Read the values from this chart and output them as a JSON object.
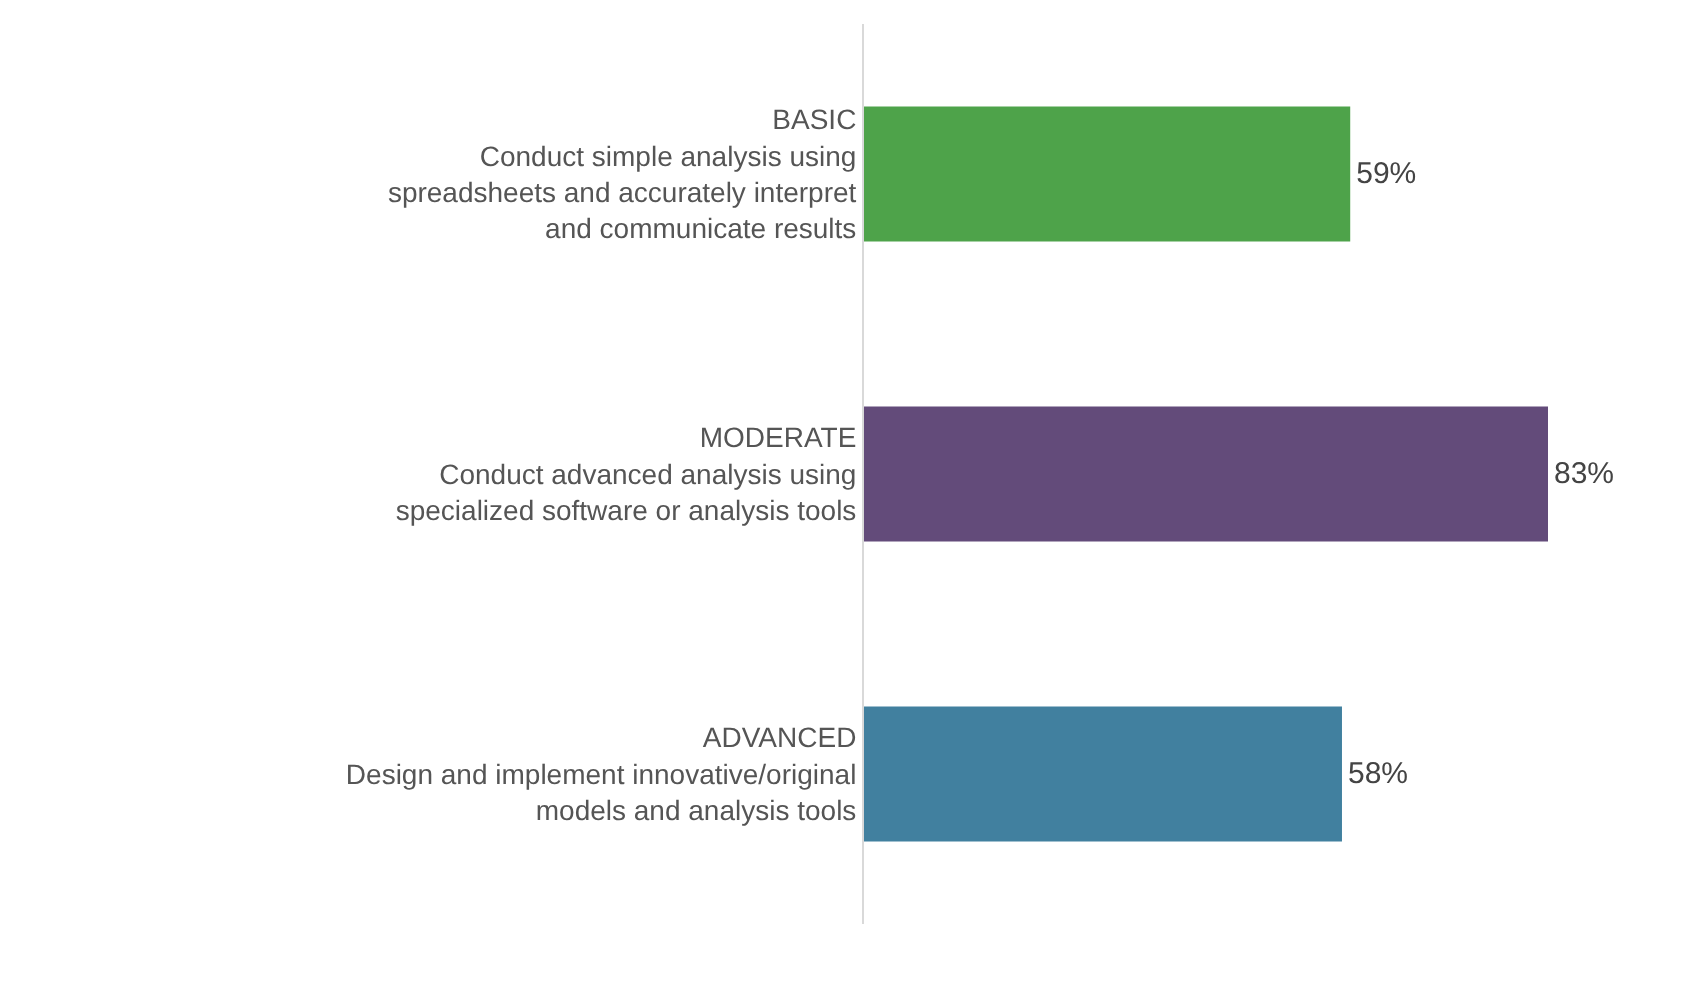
{
  "chart_data": {
    "type": "bar",
    "orientation": "horizontal",
    "categories": [
      "BASIC\nConduct simple analysis using\nspreadsheets and accurately interpret\nand communicate results",
      "MODERATE\nConduct advanced analysis using\nspecialized software or analysis tools",
      "ADVANCED\nDesign and implement innovative/original\nmodels and analysis tools"
    ],
    "values": [
      59,
      83,
      58
    ],
    "colors": [
      "#4ea34a",
      "#634b7a",
      "#41809f"
    ],
    "value_labels": [
      "59%",
      "83%",
      "58%"
    ],
    "tick_labels": "y",
    "legend": false
  }
}
